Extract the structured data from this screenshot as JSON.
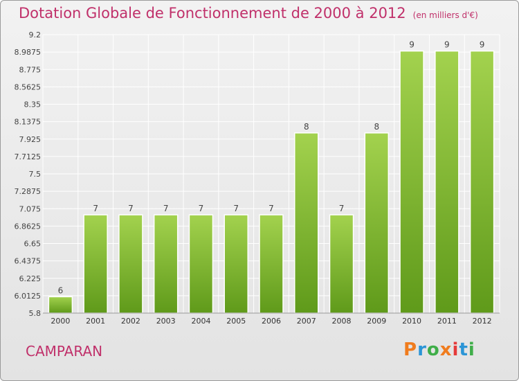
{
  "title": "Dotation Globale de Fonctionnement de 2000 à 2012",
  "unit_note": "(en milliers d'€)",
  "commune": "CAMPARAN",
  "logo": {
    "text": "Proxiti",
    "colors": [
      "#f07c1e",
      "#2b95d6",
      "#3fae49",
      "#f07c1e",
      "#e53a3a",
      "#2b95d6",
      "#3fae49"
    ]
  },
  "colors": {
    "title": "#c0306a",
    "bar_light": "#a3d24e",
    "bar_dark": "#5f9a1a",
    "grid": "#ffffff"
  },
  "chart_data": {
    "type": "bar",
    "title": "Dotation Globale de Fonctionnement de 2000 à 2012",
    "subtitle": "(en milliers d'€)",
    "categories": [
      "2000",
      "2001",
      "2002",
      "2003",
      "2004",
      "2005",
      "2006",
      "2007",
      "2008",
      "2009",
      "2010",
      "2011",
      "2012"
    ],
    "values": [
      6,
      7,
      7,
      7,
      7,
      7,
      7,
      8,
      7,
      8,
      9,
      9,
      9
    ],
    "data_labels": [
      "6",
      "7",
      "7",
      "7",
      "7",
      "7",
      "7",
      "8",
      "7",
      "8",
      "9",
      "9",
      "9"
    ],
    "yticks": [
      "5.8",
      "6.0125",
      "6.225",
      "6.4375",
      "6.65",
      "6.8625",
      "7.075",
      "7.2875",
      "7.5",
      "7.7125",
      "7.925",
      "8.1375",
      "8.35",
      "8.5625",
      "8.775",
      "8.9875",
      "9.2"
    ],
    "ylim": [
      5.8,
      9.2
    ],
    "grid": true,
    "legend": "none"
  }
}
